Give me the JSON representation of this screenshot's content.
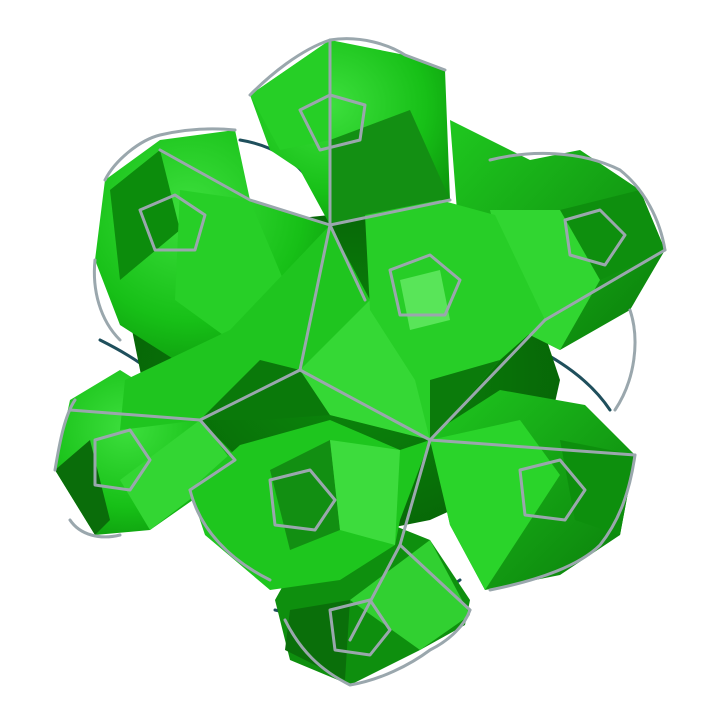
{
  "image": {
    "subject": "hyperbolic-honeycomb-render",
    "background": "#ffffff"
  },
  "palette": {
    "face_light": "#2fd42f",
    "face_mid": "#1cbf1c",
    "face_dark": "#0d8a0d",
    "face_deep": "#075f07",
    "highlight": "#6fea6f",
    "edge_light": "#9aa7ad",
    "edge_dark": "#1f4f5c"
  },
  "cells": [
    {
      "id": "top",
      "kind": "cusp-cell"
    },
    {
      "id": "upper-left",
      "kind": "cusp-cell"
    },
    {
      "id": "upper-right",
      "kind": "cusp-cell"
    },
    {
      "id": "center",
      "kind": "cusp-cell"
    },
    {
      "id": "center-right",
      "kind": "cusp-cell"
    },
    {
      "id": "left",
      "kind": "cusp-cell"
    },
    {
      "id": "lower-center",
      "kind": "cusp-cell"
    },
    {
      "id": "lower-right",
      "kind": "cusp-cell"
    },
    {
      "id": "bottom",
      "kind": "cusp-cell"
    }
  ]
}
